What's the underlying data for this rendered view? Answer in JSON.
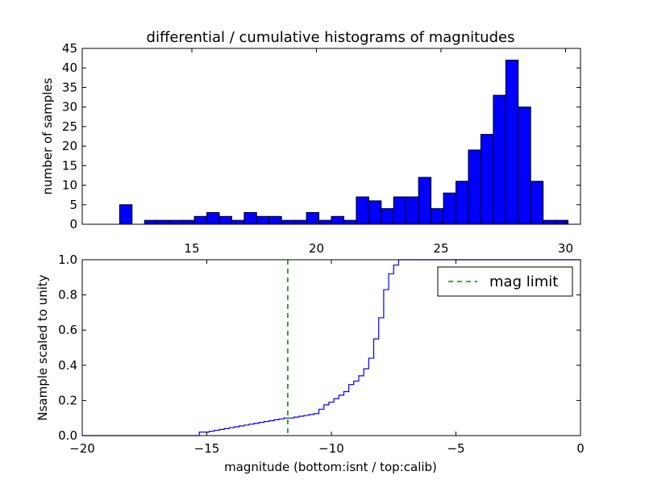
{
  "chart_data": [
    {
      "type": "bar",
      "title": "differential / cumulative histograms of magnitudes",
      "xlabel": "",
      "ylabel": "number of samples",
      "xlim": [
        10.6,
        30.6
      ],
      "ylim": [
        0,
        45
      ],
      "x_ticks": [
        15,
        20,
        25,
        30
      ],
      "y_ticks": [
        0,
        5,
        10,
        15,
        20,
        25,
        30,
        35,
        40,
        45
      ],
      "bar_color": "#0000ff",
      "bin_width": 0.5,
      "bin_starts": [
        12.1,
        12.6,
        13.1,
        13.6,
        14.1,
        14.6,
        15.1,
        15.6,
        16.1,
        16.6,
        17.1,
        17.6,
        18.1,
        18.6,
        19.1,
        19.6,
        20.1,
        20.6,
        21.1,
        21.6,
        22.1,
        22.6,
        23.1,
        23.6,
        24.1,
        24.6,
        25.1,
        25.6,
        26.1,
        26.6,
        27.1,
        27.6,
        28.1,
        28.6,
        29.1,
        29.6
      ],
      "values": [
        5,
        0,
        1,
        1,
        1,
        1,
        2,
        3,
        2,
        1,
        3,
        2,
        2,
        1,
        1,
        3,
        1,
        2,
        1,
        7,
        6,
        4,
        7,
        7,
        12,
        4,
        8,
        11,
        19,
        23,
        33,
        42,
        30,
        11,
        1,
        1
      ]
    },
    {
      "type": "line",
      "title": "",
      "xlabel": "magnitude (bottom:isnt / top:calib)",
      "ylabel": "Nsample scaled to unity",
      "xlim": [
        -20,
        0
      ],
      "ylim": [
        0,
        1
      ],
      "x_ticks": [
        -20,
        -15,
        -10,
        -5,
        0
      ],
      "x_tick_labels": [
        "−20",
        "−15",
        "−10",
        "−5",
        "0"
      ],
      "y_ticks": [
        0.0,
        0.2,
        0.4,
        0.6,
        0.8,
        1.0
      ],
      "y_tick_labels": [
        "0.0",
        "0.2",
        "0.4",
        "0.6",
        "0.8",
        "1.0"
      ],
      "series": [
        {
          "name": "",
          "color": "#0000ff",
          "drawstyle": "steps",
          "x": [
            -20,
            -15.3,
            -15.1,
            -14.9,
            -14.7,
            -14.5,
            -14.3,
            -14.1,
            -13.9,
            -13.7,
            -13.5,
            -13.3,
            -13.1,
            -12.9,
            -12.7,
            -12.5,
            -12.3,
            -12.1,
            -11.9,
            -11.7,
            -11.5,
            -11.3,
            -11.1,
            -10.9,
            -10.7,
            -10.5,
            -10.3,
            -10.1,
            -9.9,
            -9.7,
            -9.5,
            -9.3,
            -9.1,
            -8.9,
            -8.7,
            -8.5,
            -8.3,
            -8.1,
            -7.9,
            -7.7,
            -7.5,
            -7.3,
            -7.1,
            -6.9,
            -6.7,
            -6.5,
            0
          ],
          "y": [
            0,
            0.02,
            0.02,
            0.025,
            0.03,
            0.035,
            0.04,
            0.045,
            0.05,
            0.055,
            0.06,
            0.065,
            0.07,
            0.075,
            0.08,
            0.085,
            0.09,
            0.095,
            0.1,
            0.1,
            0.105,
            0.11,
            0.115,
            0.12,
            0.125,
            0.15,
            0.175,
            0.19,
            0.21,
            0.23,
            0.25,
            0.29,
            0.31,
            0.34,
            0.38,
            0.44,
            0.55,
            0.67,
            0.83,
            0.92,
            0.97,
            1.0,
            1.0,
            1.0,
            1.0,
            1.0,
            1.0
          ]
        },
        {
          "name": "mag limit",
          "color": "#008000",
          "style": "dashed",
          "x_value": -11.75
        }
      ],
      "legend_placement": "top-right"
    }
  ]
}
